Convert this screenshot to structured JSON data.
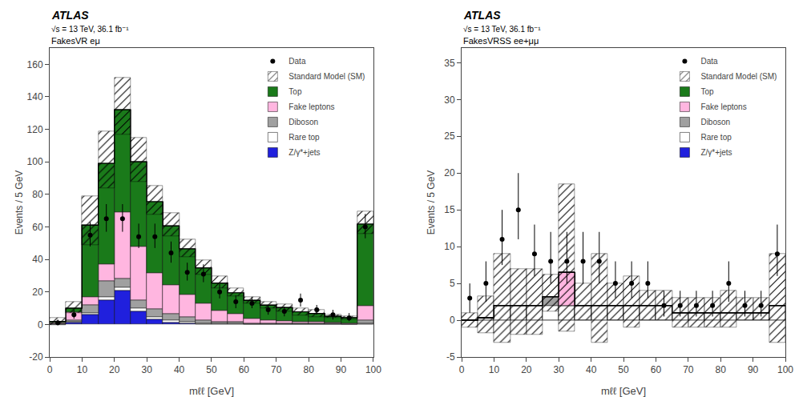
{
  "chart_data": [
    {
      "type": "bar",
      "stacked": true,
      "title": "FakesVR eμ",
      "annotations": [
        "ATLAS",
        "√s = 13 TeV, 36.1 fb⁻¹"
      ],
      "xlabel": "mℓℓ [GeV]",
      "ylabel": "Events / 5 GeV",
      "bins": [
        0,
        5,
        10,
        15,
        20,
        25,
        30,
        35,
        40,
        45,
        50,
        55,
        60,
        65,
        70,
        75,
        80,
        85,
        90,
        95,
        100
      ],
      "xlim": [
        0,
        100
      ],
      "xticks": [
        0,
        10,
        20,
        30,
        40,
        50,
        60,
        70,
        80,
        90,
        100
      ],
      "ylim": [
        -20,
        170
      ],
      "yticks": [
        -20,
        0,
        20,
        40,
        60,
        80,
        100,
        120,
        140,
        160
      ],
      "grid": false,
      "legend": "upper right",
      "series": [
        {
          "name": "Z/γ*+jets",
          "color": "#2020dd",
          "values": [
            0.2,
            1,
            6,
            15,
            21,
            8,
            3,
            1,
            0.5,
            0.3,
            0.2,
            0.2,
            0.1,
            0.1,
            0.1,
            0.1,
            0.1,
            0.1,
            0.1,
            0.2
          ]
        },
        {
          "name": "Rare top",
          "color": "#ffffff",
          "values": [
            0.2,
            0.5,
            1,
            2,
            2,
            2,
            1.5,
            1.5,
            1,
            0.5,
            0.3,
            0.3,
            0.2,
            0.2,
            0.2,
            0.2,
            0.2,
            0.1,
            0.1,
            0.5
          ]
        },
        {
          "name": "Diboson",
          "color": "#a0a0a0",
          "values": [
            0.5,
            1,
            5,
            10,
            5,
            5,
            5,
            4,
            3,
            2,
            1,
            1,
            0.5,
            0.5,
            0.5,
            0.5,
            0.5,
            0.3,
            0.2,
            2
          ]
        },
        {
          "name": "Fake leptons",
          "color": "#ffb6e0",
          "values": [
            0.5,
            5,
            5,
            10,
            41,
            33,
            22,
            18,
            14,
            10,
            7,
            5,
            3,
            2,
            1.5,
            1,
            1,
            0.5,
            0.3,
            9
          ]
        },
        {
          "name": "Top",
          "color": "#1a7a1a",
          "values": [
            0.5,
            2.5,
            44,
            62,
            63,
            52,
            44,
            36,
            28,
            22,
            17,
            13,
            11,
            9,
            8,
            6,
            5,
            4,
            3.5,
            50
          ]
        },
        {
          "name": "Standard Model (SM)",
          "type": "step",
          "color": "#000000",
          "values": [
            1.9,
            10,
            61,
            99,
            132,
            100,
            75.5,
            60.5,
            46.5,
            34.8,
            25.5,
            19.5,
            14.8,
            11.8,
            10.3,
            7.8,
            6.8,
            5,
            4.2,
            61.7
          ],
          "error_up": [
            2,
            4,
            18,
            20,
            20,
            15,
            10,
            8,
            6,
            5,
            4,
            3,
            2,
            2,
            2,
            2,
            2,
            1,
            1,
            8
          ],
          "error_down": [
            2,
            3,
            12,
            15,
            15,
            12,
            8,
            6,
            5,
            4,
            3,
            2,
            2,
            2,
            2,
            2,
            2,
            1,
            1,
            6
          ]
        },
        {
          "name": "Data",
          "type": "scatter",
          "marker": "circle",
          "color": "#000000",
          "values": [
            1,
            6,
            55,
            65,
            65,
            54,
            54,
            44,
            32,
            31,
            20,
            14,
            13,
            9,
            8,
            15,
            9,
            6,
            4,
            60
          ],
          "error_up": [
            2,
            3,
            8,
            9,
            9,
            8,
            8,
            7,
            6,
            6,
            5,
            4,
            4,
            3,
            3,
            4,
            3,
            3,
            3,
            8
          ],
          "error_down": [
            1.5,
            2.5,
            7,
            8,
            8,
            7,
            7,
            6,
            5,
            5,
            4,
            4,
            3,
            3,
            3,
            4,
            3,
            3,
            2,
            7
          ]
        }
      ]
    },
    {
      "type": "bar",
      "stacked": true,
      "title": "FakesVRSS ee+μμ",
      "annotations": [
        "ATLAS",
        "√s = 13 TeV, 36.1 fb⁻¹"
      ],
      "xlabel": "mℓℓ [GeV]",
      "ylabel": "Events / 5 GeV",
      "bins": [
        0,
        5,
        10,
        15,
        20,
        25,
        30,
        35,
        40,
        45,
        50,
        55,
        60,
        65,
        70,
        75,
        80,
        85,
        90,
        95,
        100
      ],
      "xlim": [
        0,
        100
      ],
      "xticks": [
        0,
        10,
        20,
        30,
        40,
        50,
        60,
        70,
        80,
        90,
        100
      ],
      "ylim": [
        -5,
        37
      ],
      "yticks": [
        -5,
        0,
        5,
        10,
        15,
        20,
        25,
        30,
        35
      ],
      "grid": false,
      "legend": "upper right",
      "series": [
        {
          "name": "Z/γ*+jets",
          "color": "#2020dd",
          "values": [
            0,
            0,
            0,
            0,
            0,
            0,
            0,
            0,
            0,
            0,
            0,
            0,
            0,
            0,
            0,
            0,
            0,
            0,
            0,
            0
          ]
        },
        {
          "name": "Rare top",
          "color": "#ffffff",
          "values": [
            0,
            0.3,
            2,
            2,
            2,
            2,
            2,
            2,
            2,
            2,
            2,
            2,
            2,
            1,
            1,
            1,
            1,
            1,
            1,
            2
          ]
        },
        {
          "name": "Diboson",
          "color": "#a0a0a0",
          "values": [
            0,
            0,
            0,
            0,
            0,
            1.2,
            0,
            0,
            0,
            0,
            0,
            0,
            0,
            0,
            0,
            0,
            0,
            0,
            0,
            0
          ]
        },
        {
          "name": "Fake leptons",
          "color": "#ffb6e0",
          "values": [
            0,
            0,
            0,
            0,
            0,
            0,
            4.5,
            0,
            0,
            0,
            0,
            0,
            0,
            0,
            0,
            0,
            0,
            0,
            0,
            0
          ]
        },
        {
          "name": "Top",
          "color": "#1a7a1a",
          "values": [
            0,
            0,
            0,
            0,
            0,
            0,
            0,
            0,
            0,
            0,
            0,
            0,
            0,
            0,
            0,
            0,
            0,
            0,
            0,
            0
          ]
        },
        {
          "name": "Standard Model (SM)",
          "type": "step",
          "color": "#000000",
          "values": [
            0,
            0.3,
            2,
            2,
            2,
            3.2,
            6.5,
            2,
            2,
            2,
            2,
            2,
            2,
            1,
            1,
            1,
            1,
            1,
            1,
            2
          ],
          "error_up": [
            1,
            3,
            7,
            5,
            5,
            3,
            12,
            3,
            7,
            3,
            4,
            2,
            2,
            2,
            2,
            2,
            3,
            2,
            2,
            7
          ],
          "error_down": [
            1,
            2,
            5,
            4,
            4,
            2,
            8,
            2,
            5,
            2,
            3,
            2,
            2,
            2,
            2,
            2,
            2,
            1,
            1,
            5
          ]
        },
        {
          "name": "Data",
          "type": "scatter",
          "marker": "circle",
          "color": "#000000",
          "values": [
            3,
            5,
            11,
            15,
            9,
            8,
            8,
            8,
            8,
            5,
            5,
            5,
            2,
            2,
            2,
            2,
            5,
            2,
            2,
            9
          ],
          "error_up": [
            2,
            3,
            4,
            5,
            4,
            4,
            4,
            4,
            4,
            3,
            3,
            3,
            2,
            2,
            2,
            2,
            3,
            2,
            2,
            4
          ],
          "error_down": [
            2,
            2.5,
            3.5,
            4,
            3,
            3,
            3,
            3,
            3,
            2,
            2,
            2,
            1.5,
            1.5,
            1.5,
            1.5,
            2.5,
            1.5,
            1.5,
            3
          ]
        }
      ]
    }
  ]
}
